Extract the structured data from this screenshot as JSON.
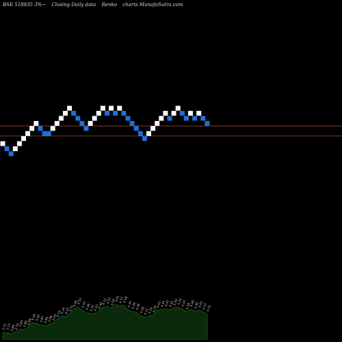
{
  "header": {
    "symbol": "BSE 518835 3%~",
    "mode": "Closing Daily data",
    "chart_kind": "Renko",
    "credit": "charts MunafaSutra.com"
  },
  "colors": {
    "background": "#000000",
    "up_brick": "#ffffff",
    "down_brick": "#1e6fd9",
    "level_line": "#a0522d",
    "volume_fill": "#0b2a0b",
    "volume_edge": "#1f5e1f",
    "label_text": "#cccccc"
  },
  "chart_data": {
    "type": "renko",
    "levels": [
      0,
      -1,
      -2,
      -1,
      0,
      1,
      2,
      3,
      4,
      3,
      2,
      2,
      3,
      4,
      5,
      6,
      7,
      6,
      5,
      4,
      3,
      4,
      5,
      6,
      7,
      6,
      7,
      6,
      7,
      6,
      5,
      4,
      3,
      2,
      1,
      2,
      3,
      4,
      5,
      6,
      5,
      6,
      7,
      6,
      5,
      6,
      5,
      6,
      5,
      4
    ],
    "directions": [
      "up",
      "down",
      "down",
      "up",
      "up",
      "up",
      "up",
      "up",
      "up",
      "down",
      "down",
      "down",
      "up",
      "up",
      "up",
      "up",
      "up",
      "down",
      "down",
      "down",
      "down",
      "up",
      "up",
      "up",
      "up",
      "down",
      "up",
      "down",
      "up",
      "down",
      "down",
      "down",
      "down",
      "down",
      "down",
      "up",
      "up",
      "up",
      "up",
      "up",
      "down",
      "up",
      "up",
      "down",
      "down",
      "up",
      "down",
      "up",
      "down",
      "down"
    ],
    "horizontal_levels": [
      3.5,
      1.5
    ],
    "volume_labels": [
      "3.73",
      "3.73",
      "3.69",
      "3.74",
      "3.84",
      "3.83",
      "3.89",
      "4.04",
      "4.02",
      "3.97",
      "3.94",
      "3.98",
      "4.03",
      "4.14",
      "4.24",
      "4.23",
      "4.31",
      "4.46",
      "4.53",
      "4.43",
      "4.36",
      "4.32",
      "4.33",
      "4.40",
      "4.52",
      "4.55",
      "4.50",
      "4.61",
      "4.57",
      "4.58",
      "4.44",
      "4.39",
      "4.36",
      "4.26",
      "4.21",
      "4.24",
      "4.29",
      "4.43",
      "4.45",
      "4.47",
      "4.45",
      "4.50",
      "4.52",
      "4.47",
      "4.38",
      "4.46",
      "4.40",
      "4.43",
      "4.37",
      "4.31"
    ]
  }
}
